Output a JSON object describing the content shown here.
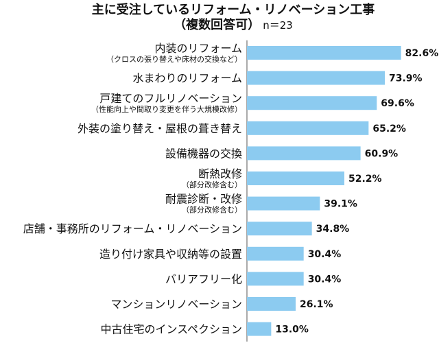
{
  "title": {
    "line1": "主に受注しているリフォーム・リノベーション工事",
    "line2": "（複数回答可）",
    "note": "n＝23"
  },
  "colors": {
    "bar": "#8ccbf0",
    "text": "#111111",
    "axis": "#555555"
  },
  "chart_data": {
    "type": "bar",
    "orientation": "horizontal",
    "title": "主に受注しているリフォーム・リノベーション工事（複数回答可）",
    "value_suffix": "%",
    "xlim": [
      0,
      100
    ],
    "categories": [
      {
        "label": "内装のリフォーム",
        "sub": "（クロスの張り替えや床材の交換など）"
      },
      {
        "label": "水まわりのリフォーム",
        "sub": ""
      },
      {
        "label": "戸建てのフルリノベーション",
        "sub": "（性能向上や間取り変更を伴う大規模改修）"
      },
      {
        "label": "外装の塗り替え・屋根の葺き替え",
        "sub": ""
      },
      {
        "label": "設備機器の交換",
        "sub": ""
      },
      {
        "label": "断熱改修",
        "sub": "（部分改修含む）"
      },
      {
        "label": "耐震診断・改修",
        "sub": "（部分改修含む）"
      },
      {
        "label": "店舗・事務所のリフォーム・リノベーション",
        "sub": ""
      },
      {
        "label": "造り付け家具や収納等の設置",
        "sub": ""
      },
      {
        "label": "バリアフリー化",
        "sub": ""
      },
      {
        "label": "マンションリノベーション",
        "sub": ""
      },
      {
        "label": "中古住宅のインスペクション",
        "sub": ""
      }
    ],
    "values": [
      82.6,
      73.9,
      69.6,
      65.2,
      60.9,
      52.2,
      39.1,
      34.8,
      30.4,
      30.4,
      26.1,
      13.0
    ]
  }
}
